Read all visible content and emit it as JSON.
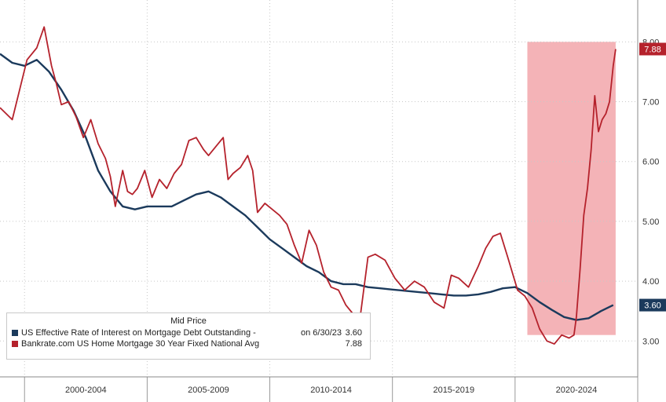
{
  "colors": {
    "series_effective": "#1b3a5c",
    "series_bankrate": "#b5222c",
    "highlight": "#f2a6aa",
    "grid": "#c8c8c8"
  },
  "legend": {
    "title": "Mid Price",
    "rows": [
      {
        "label": "US Effective Rate of Interest on Mortgage Debt Outstanding -",
        "date": "on 6/30/23",
        "value": "3.60"
      },
      {
        "label": "Bankrate.com US Home Mortgage 30 Year Fixed National Avg",
        "date": "",
        "value": "7.88"
      }
    ]
  },
  "chart_data": {
    "type": "line",
    "title": "",
    "xlabel": "",
    "ylabel": "",
    "xlim": [
      1998.5,
      2024.5
    ],
    "ylim": [
      2.4,
      8.7
    ],
    "y_ticks": [
      "3.00",
      "4.00",
      "5.00",
      "6.00",
      "7.00",
      "8.00"
    ],
    "x_periods": [
      "2000-2004",
      "2005-2009",
      "2010-2014",
      "2015-2019",
      "2020-2024"
    ],
    "highlight_range": {
      "x": [
        2020.0,
        2023.6
      ],
      "y": [
        3.1,
        8.0
      ]
    },
    "last_value_badges": [
      "7.88",
      "3.60"
    ],
    "series": [
      {
        "name": "US Effective Rate of Interest on Mortgage Debt Outstanding",
        "color": "#1b3a5c",
        "x": [
          1998.5,
          1999.0,
          1999.5,
          2000.0,
          2000.5,
          2001.0,
          2001.5,
          2002.0,
          2002.5,
          2003.0,
          2003.5,
          2004.0,
          2004.5,
          2005.0,
          2005.5,
          2006.0,
          2006.5,
          2007.0,
          2007.5,
          2008.0,
          2008.5,
          2009.0,
          2009.5,
          2010.0,
          2010.5,
          2011.0,
          2011.5,
          2012.0,
          2012.5,
          2013.0,
          2013.5,
          2014.0,
          2014.5,
          2015.0,
          2015.5,
          2016.0,
          2016.5,
          2017.0,
          2017.5,
          2018.0,
          2018.5,
          2019.0,
          2019.5,
          2020.0,
          2020.5,
          2021.0,
          2021.5,
          2022.0,
          2022.5,
          2023.0,
          2023.5
        ],
        "y": [
          7.8,
          7.65,
          7.6,
          7.7,
          7.5,
          7.2,
          6.85,
          6.4,
          5.85,
          5.5,
          5.25,
          5.2,
          5.25,
          5.25,
          5.25,
          5.35,
          5.45,
          5.5,
          5.4,
          5.25,
          5.1,
          4.9,
          4.7,
          4.55,
          4.4,
          4.25,
          4.15,
          4.0,
          3.95,
          3.95,
          3.9,
          3.88,
          3.86,
          3.84,
          3.82,
          3.8,
          3.78,
          3.76,
          3.76,
          3.78,
          3.82,
          3.88,
          3.9,
          3.8,
          3.65,
          3.52,
          3.4,
          3.35,
          3.38,
          3.5,
          3.6
        ]
      },
      {
        "name": "Bankrate.com US Home Mortgage 30 Year Fixed National Avg",
        "color": "#b5222c",
        "x": [
          1998.5,
          1999.0,
          1999.3,
          1999.6,
          2000.0,
          2000.3,
          2000.6,
          2000.8,
          2001.0,
          2001.3,
          2001.6,
          2001.9,
          2002.2,
          2002.5,
          2002.8,
          2003.0,
          2003.2,
          2003.5,
          2003.7,
          2003.9,
          2004.1,
          2004.4,
          2004.7,
          2005.0,
          2005.3,
          2005.6,
          2005.9,
          2006.2,
          2006.5,
          2006.8,
          2007.0,
          2007.3,
          2007.6,
          2007.8,
          2008.0,
          2008.3,
          2008.6,
          2008.8,
          2009.0,
          2009.3,
          2009.6,
          2009.9,
          2010.2,
          2010.5,
          2010.8,
          2011.1,
          2011.4,
          2011.7,
          2012.0,
          2012.3,
          2012.6,
          2012.9,
          2013.2,
          2013.5,
          2013.8,
          2014.2,
          2014.6,
          2015.0,
          2015.4,
          2015.8,
          2016.2,
          2016.6,
          2016.9,
          2017.2,
          2017.6,
          2018.0,
          2018.3,
          2018.6,
          2018.9,
          2019.2,
          2019.6,
          2019.9,
          2020.2,
          2020.5,
          2020.8,
          2021.1,
          2021.4,
          2021.7,
          2021.9,
          2022.0,
          2022.15,
          2022.3,
          2022.45,
          2022.6,
          2022.75,
          2022.9,
          2023.05,
          2023.2,
          2023.35,
          2023.5,
          2023.6
        ],
        "y": [
          6.9,
          6.7,
          7.2,
          7.7,
          7.9,
          8.25,
          7.6,
          7.3,
          6.95,
          7.0,
          6.75,
          6.4,
          6.7,
          6.3,
          6.05,
          5.75,
          5.25,
          5.85,
          5.5,
          5.45,
          5.55,
          5.85,
          5.4,
          5.7,
          5.55,
          5.8,
          5.95,
          6.35,
          6.4,
          6.2,
          6.1,
          6.25,
          6.4,
          5.7,
          5.8,
          5.9,
          6.1,
          5.85,
          5.15,
          5.3,
          5.2,
          5.1,
          4.95,
          4.6,
          4.3,
          4.85,
          4.6,
          4.15,
          3.9,
          3.85,
          3.6,
          3.45,
          3.45,
          4.4,
          4.45,
          4.35,
          4.05,
          3.85,
          4.0,
          3.9,
          3.65,
          3.55,
          4.1,
          4.05,
          3.9,
          4.25,
          4.55,
          4.75,
          4.8,
          4.4,
          3.85,
          3.75,
          3.55,
          3.2,
          3.0,
          2.95,
          3.1,
          3.05,
          3.1,
          3.4,
          4.2,
          5.1,
          5.55,
          6.2,
          7.1,
          6.5,
          6.7,
          6.8,
          7.0,
          7.6,
          7.88
        ]
      }
    ]
  }
}
